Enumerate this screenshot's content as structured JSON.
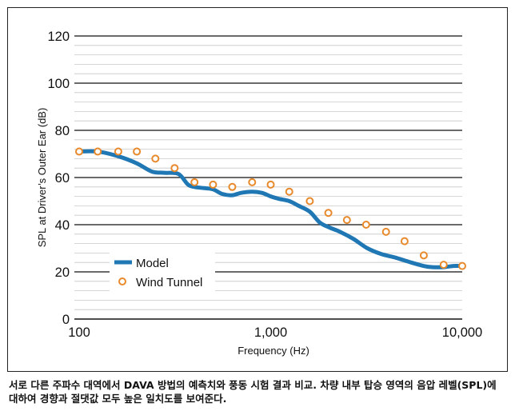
{
  "chart_data": {
    "type": "line",
    "xlabel": "Frequency (Hz)",
    "ylabel": "SPL at Driver’s Outer Ear (dB)",
    "xscale": "log",
    "xlim": [
      100,
      10000
    ],
    "ylim": [
      0,
      120
    ],
    "x_ticks": [
      100,
      1000,
      10000
    ],
    "x_tick_labels": [
      "100",
      "1,000",
      "10,000"
    ],
    "y_ticks": [
      0,
      20,
      40,
      60,
      80,
      100,
      120
    ],
    "y_tick_labels": [
      "0",
      "20",
      "40",
      "60",
      "80",
      "100",
      "120"
    ],
    "minor_y_step": 4,
    "grid": true,
    "legend_position": "lower-left",
    "series": [
      {
        "name": "Model",
        "style": "line",
        "color": "#1f77b4",
        "x": [
          100,
          125,
          160,
          200,
          240,
          280,
          330,
          370,
          400,
          450,
          500,
          560,
          630,
          700,
          800,
          900,
          1000,
          1100,
          1250,
          1400,
          1600,
          1800,
          2000,
          2300,
          2700,
          3200,
          3800,
          4500,
          5400,
          6300,
          7000,
          8000,
          9000,
          10000
        ],
        "y": [
          71,
          71,
          69,
          66,
          62.5,
          62,
          61.5,
          57,
          56,
          55.5,
          55,
          53,
          52.5,
          53.5,
          54,
          53.5,
          52,
          51,
          50,
          48,
          45.5,
          41,
          39,
          37,
          34,
          30,
          27.5,
          26,
          24,
          22.5,
          22,
          22,
          22.5,
          22.5
        ]
      },
      {
        "name": "Wind Tunnel",
        "style": "markers",
        "color": "#e8892b",
        "x": [
          100,
          125,
          160,
          200,
          250,
          315,
          400,
          500,
          630,
          800,
          1000,
          1250,
          1600,
          2000,
          2500,
          3150,
          4000,
          5000,
          6300,
          8000,
          10000
        ],
        "y": [
          71,
          71,
          71,
          71,
          68,
          64,
          58,
          57,
          56,
          58,
          57,
          54,
          50,
          45,
          42,
          40,
          37,
          33,
          27,
          23,
          22.5
        ]
      }
    ]
  },
  "caption": "서로 다른 주파수 대역에서 DAVA 방법의 예측치와 풍동 시험 결과 비교. 차량 내부 탑승 영역의 음압 레벨(SPL)에 대하여 경향과 절댓값 모두 높은 일치도를 보여준다."
}
